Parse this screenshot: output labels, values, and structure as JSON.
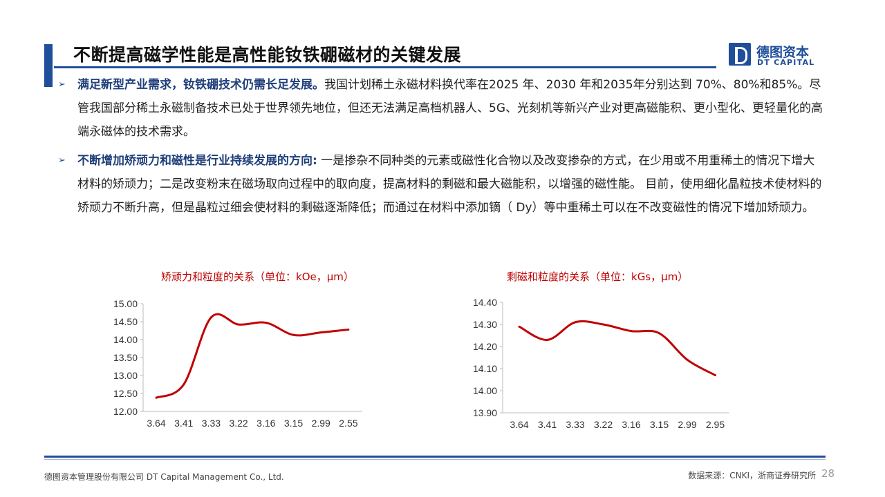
{
  "header": {
    "title": "不断提高磁学性能是高性能钕铁硼磁材的关键发展",
    "logo_cn": "德图资本",
    "logo_en": "DT CAPITAL"
  },
  "bullets": [
    {
      "icon": "arrow-bullet-icon",
      "heading": "满足新型产业需求，钕铁硼技术仍需长足发展。",
      "body": "我国计划稀土永磁材料换代率在2025 年、2030 年和2035年分别达到 70%、80%和85%。尽管我国部分稀土永磁制备技术已处于世界领先地位，但还无法满足高档机器人、5G、光刻机等新兴产业对更高磁能积、更小型化、更轻量化的高端永磁体的技术需求。"
    },
    {
      "icon": "arrow-bullet-icon",
      "heading": "不断增加矫顽力和磁性是行业持续发展的方向:",
      "body": " 一是掺杂不同种类的元素或磁性化合物以及改变掺杂的方式，在少用或不用重稀土的情况下增大材料的矫顽力；二是改变粉末在磁场取向过程中的取向度，提高材料的剩磁和最大磁能积，以增强的磁性能。 目前，使用细化晶粒技术使材料的矫顽力不断升高，但是晶粒过细会使材料的剩磁逐渐降低；而通过在材料中添加镝（ Dy）等中重稀土可以在不改变磁性的情况下增加矫顽力。"
    }
  ],
  "chart_data": [
    {
      "type": "line",
      "title": "矫顽力和粒度的关系（单位：kOe，μm）",
      "categories": [
        "3.64",
        "3.41",
        "3.33",
        "3.22",
        "3.16",
        "3.15",
        "2.99",
        "2.55"
      ],
      "values": [
        12.38,
        12.75,
        14.62,
        14.42,
        14.47,
        14.13,
        14.2,
        14.28
      ],
      "yticks": [
        "12.00",
        "12.50",
        "13.00",
        "13.50",
        "14.00",
        "14.50",
        "15.00"
      ],
      "ylim": [
        12.0,
        15.0
      ],
      "color": "#c00000"
    },
    {
      "type": "line",
      "title": "剩磁和粒度的关系（单位：kGs，μm）",
      "categories": [
        "3.64",
        "3.41",
        "3.33",
        "3.22",
        "3.16",
        "3.15",
        "2.99",
        "2.95"
      ],
      "values": [
        14.29,
        14.23,
        14.31,
        14.3,
        14.27,
        14.26,
        14.14,
        14.07
      ],
      "yticks": [
        "13.90",
        "14.00",
        "14.10",
        "14.20",
        "14.30",
        "14.40"
      ],
      "ylim": [
        13.9,
        14.4
      ],
      "color": "#c00000"
    }
  ],
  "footer": {
    "company": "德图资本管理股份有限公司  DT Capital Management  Co., Ltd.",
    "source": "数据来源：CNKI，浙商证券研究所",
    "page": "28"
  }
}
